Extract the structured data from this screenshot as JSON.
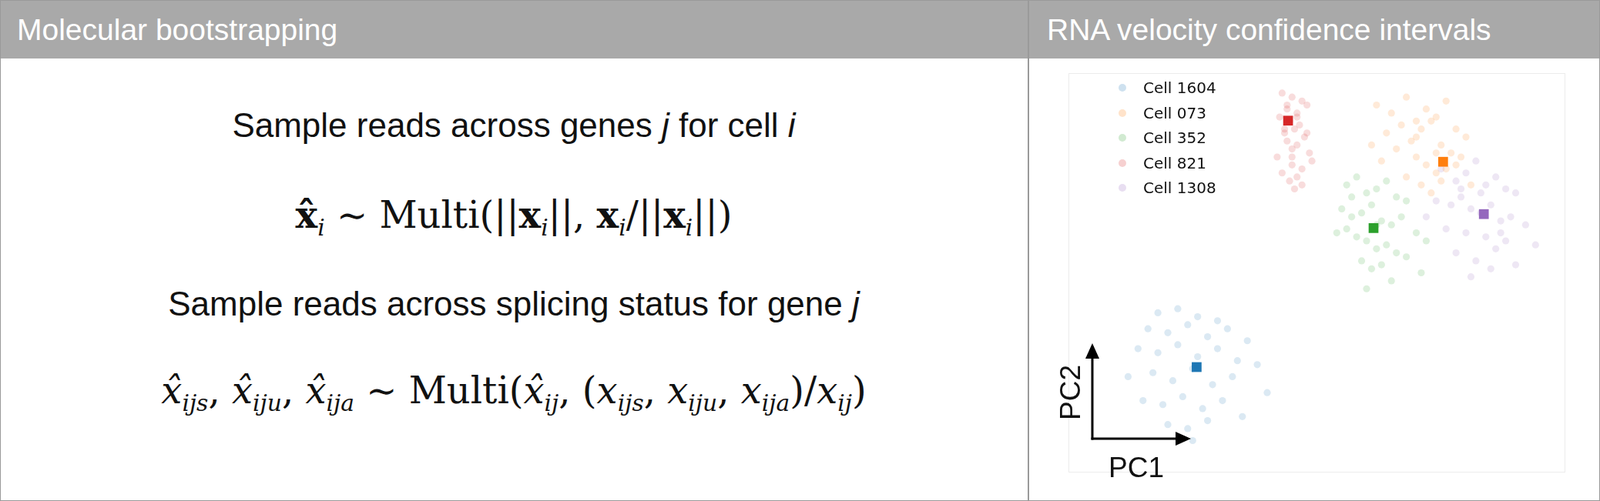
{
  "left_panel": {
    "title": "Molecular bootstrapping",
    "steps": [
      {
        "description": [
          {
            "text": "Sample reads across genes "
          },
          {
            "text": "j",
            "style": "italic"
          },
          {
            "text": " for cell "
          },
          {
            "text": "i",
            "style": "italic"
          }
        ],
        "equation": [
          {
            "text": "x̂",
            "style": "bold",
            "sub": "i"
          },
          {
            "text": " ∼ Multi(||"
          },
          {
            "text": "x",
            "style": "bold",
            "sub": "i"
          },
          {
            "text": "||, "
          },
          {
            "text": "x",
            "style": "bold",
            "sub": "i"
          },
          {
            "text": "/||"
          },
          {
            "text": "x",
            "style": "bold",
            "sub": "i"
          },
          {
            "text": "||)"
          }
        ]
      },
      {
        "description": [
          {
            "text": "Sample reads across splicing status for gene "
          },
          {
            "text": "j",
            "style": "italic"
          }
        ],
        "equation": [
          {
            "text": "x̂",
            "style": "italic",
            "sub": "ijs"
          },
          {
            "text": ", "
          },
          {
            "text": "x̂",
            "style": "italic",
            "sub": "iju"
          },
          {
            "text": ", "
          },
          {
            "text": "x̂",
            "style": "italic",
            "sub": "ija"
          },
          {
            "text": " ∼ Multi("
          },
          {
            "text": "x̂",
            "style": "italic",
            "sub": "ij"
          },
          {
            "text": ", ("
          },
          {
            "text": "x",
            "style": "italic",
            "sub": "ijs"
          },
          {
            "text": ", "
          },
          {
            "text": "x",
            "style": "italic",
            "sub": "iju"
          },
          {
            "text": ", "
          },
          {
            "text": "x",
            "style": "italic",
            "sub": "ija"
          },
          {
            "text": ")/"
          },
          {
            "text": "x",
            "style": "italic",
            "sub": "ij"
          },
          {
            "text": ")"
          }
        ]
      }
    ]
  },
  "right_panel": {
    "title": "RNA velocity confidence intervals"
  },
  "chart_data": {
    "type": "scatter",
    "x_label": "PC1",
    "y_label": "PC2",
    "xlim": [
      0,
      100
    ],
    "ylim": [
      0,
      100
    ],
    "tick_labels": false,
    "grid": false,
    "legend": "upper left",
    "marker": "circle",
    "series": [
      {
        "name": "Cell 1604",
        "color": "#1f77b4",
        "x": [
          18,
          22,
          26,
          30,
          16,
          20,
          24,
          28,
          32,
          36,
          14,
          18,
          22,
          26,
          30,
          34,
          38,
          12,
          17,
          21,
          25,
          29,
          33,
          40,
          15,
          19,
          23,
          27,
          31,
          20,
          24,
          28,
          35,
          25
        ],
        "y": [
          40,
          41,
          39,
          38,
          36,
          35,
          37,
          34,
          36,
          33,
          31,
          30,
          32,
          29,
          31,
          28,
          27,
          24,
          25,
          23,
          26,
          22,
          24,
          20,
          18,
          17,
          19,
          16,
          18,
          12,
          11,
          13,
          14,
          8
        ],
        "center": [
          25.8,
          26.4
        ]
      },
      {
        "name": "Cell 073",
        "color": "#ff7f0e",
        "x": [
          62,
          65,
          68,
          70,
          72,
          74,
          76,
          78,
          80,
          64,
          67,
          69,
          71,
          73,
          75,
          77,
          79,
          66,
          70,
          72,
          74,
          76,
          68,
          71,
          73,
          75,
          78,
          63,
          61,
          81,
          70,
          74
        ],
        "y": [
          92,
          90,
          94,
          88,
          91,
          89,
          93,
          86,
          84,
          85,
          87,
          83,
          86,
          88,
          82,
          80,
          79,
          81,
          79,
          77,
          75,
          76,
          74,
          72,
          70,
          73,
          77,
          78,
          82,
          72,
          84,
          80
        ],
        "center": [
          75.4,
          77.8
        ]
      },
      {
        "name": "Cell 352",
        "color": "#2ca02c",
        "x": [
          56,
          58,
          60,
          62,
          64,
          66,
          68,
          55,
          57,
          59,
          61,
          63,
          65,
          67,
          70,
          72,
          58,
          60,
          62,
          64,
          66,
          56,
          59,
          61,
          63,
          68,
          71,
          65,
          60,
          62,
          57,
          54
        ],
        "y": [
          72,
          74,
          70,
          71,
          73,
          69,
          68,
          66,
          64,
          65,
          67,
          63,
          62,
          64,
          60,
          58,
          59,
          58,
          56,
          57,
          55,
          61,
          53,
          51,
          52,
          54,
          50,
          48,
          46,
          62,
          69,
          60
        ],
        "center": [
          61.4,
          61.2
        ]
      },
      {
        "name": "Cell 821",
        "color": "#d62728",
        "x": [
          43,
          45,
          47,
          44,
          46,
          48,
          42.5,
          44.5,
          46.5,
          45.5,
          43.5,
          47.5,
          44,
          46,
          45,
          48.5,
          42,
          49,
          45,
          47,
          43,
          46,
          44.5,
          47,
          45.5,
          43.5,
          46,
          44,
          48,
          45
        ],
        "y": [
          95,
          94,
          93,
          91,
          90,
          92,
          89,
          88,
          87,
          86,
          85,
          84,
          83,
          82,
          81,
          80,
          79,
          78,
          77,
          76,
          75,
          74,
          73,
          72,
          71,
          86,
          89,
          92,
          85,
          79
        ],
        "center": [
          44.2,
          88.1
        ]
      },
      {
        "name": "Cell 1308",
        "color": "#9467bd",
        "x": [
          75,
          78,
          80,
          82,
          84,
          86,
          88,
          90,
          74,
          77,
          79,
          81,
          83,
          85,
          87,
          89,
          92,
          76,
          80,
          84,
          88,
          94,
          72,
          78,
          82,
          86,
          90,
          81,
          85,
          83,
          79,
          87
        ],
        "y": [
          76,
          73,
          75,
          78,
          72,
          74,
          71,
          70,
          68,
          67,
          69,
          66,
          65,
          67,
          63,
          64,
          62,
          61,
          60,
          59,
          58,
          57,
          64,
          55,
          53,
          56,
          52,
          49,
          51,
          70,
          71,
          60
        ],
        "center": [
          83.6,
          64.7
        ]
      }
    ]
  }
}
